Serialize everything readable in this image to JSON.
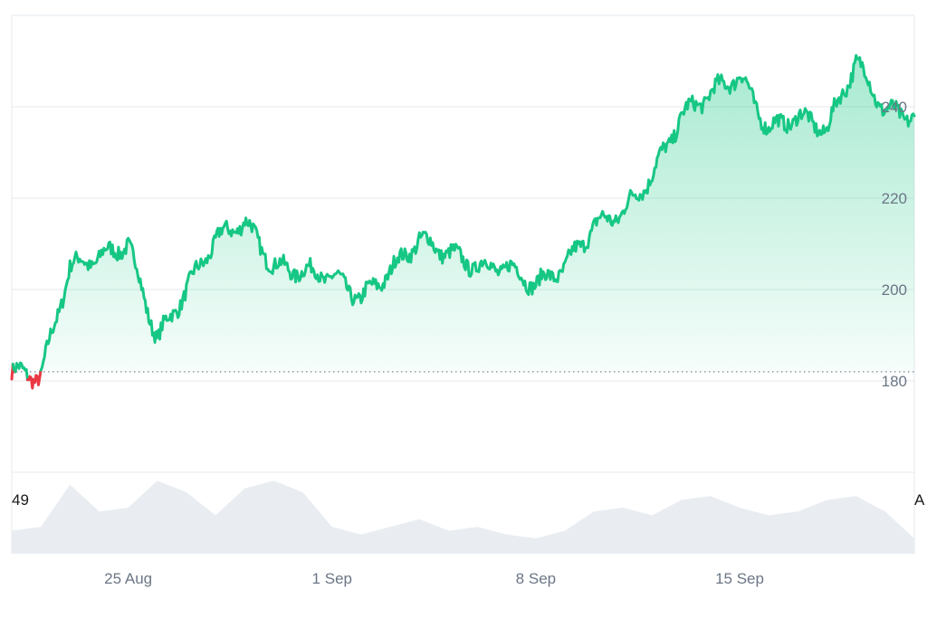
{
  "chart_data": {
    "type": "area",
    "ylim": [
      160,
      260
    ],
    "y_ticks": [
      180,
      200,
      220,
      240
    ],
    "y_tick_labels": [
      "180",
      "200",
      "220",
      "240"
    ],
    "x_tick_labels": [
      "25 Aug",
      "1 Sep",
      "8 Sep",
      "15 Sep"
    ],
    "x_tick_dates": [
      "2025-08-25",
      "2025-09-01",
      "2025-09-08",
      "2025-09-15"
    ],
    "x_range": [
      "2025-08-21",
      "2025-09-21"
    ],
    "baseline": 182,
    "grid": true,
    "series": [
      {
        "color_up": "#16c784",
        "color_down": "#ea3943",
        "x": [
          "2025-08-21",
          "2025-08-22",
          "2025-08-23",
          "2025-08-24",
          "2025-08-25",
          "2025-08-26",
          "2025-08-27",
          "2025-08-28",
          "2025-08-29",
          "2025-08-30",
          "2025-08-31",
          "2025-09-01",
          "2025-09-02",
          "2025-09-03",
          "2025-09-04",
          "2025-09-05",
          "2025-09-06",
          "2025-09-07",
          "2025-09-08",
          "2025-09-09",
          "2025-09-10",
          "2025-09-11",
          "2025-09-12",
          "2025-09-13",
          "2025-09-14",
          "2025-09-15",
          "2025-09-16",
          "2025-09-17",
          "2025-09-18",
          "2025-09-19",
          "2025-09-20",
          "2025-09-21"
        ],
        "values": [
          182,
          181,
          205,
          207,
          210,
          189,
          200,
          211,
          215,
          205,
          204,
          203,
          198,
          204,
          211,
          208,
          205,
          205,
          201,
          205,
          214,
          217,
          225,
          238,
          243,
          247,
          235,
          238,
          235,
          250,
          239,
          238
        ]
      }
    ]
  },
  "volume": {
    "left_label": "49",
    "right_label": "A",
    "x": [
      "2025-08-21",
      "2025-08-22",
      "2025-08-23",
      "2025-08-24",
      "2025-08-25",
      "2025-08-26",
      "2025-08-27",
      "2025-08-28",
      "2025-08-29",
      "2025-08-30",
      "2025-08-31",
      "2025-09-01",
      "2025-09-02",
      "2025-09-03",
      "2025-09-04",
      "2025-09-05",
      "2025-09-06",
      "2025-09-07",
      "2025-09-08",
      "2025-09-09",
      "2025-09-10",
      "2025-09-11",
      "2025-09-12",
      "2025-09-13",
      "2025-09-14",
      "2025-09-15",
      "2025-09-16",
      "2025-09-17",
      "2025-09-18",
      "2025-09-19",
      "2025-09-20",
      "2025-09-21"
    ],
    "values": [
      30,
      35,
      90,
      55,
      60,
      95,
      80,
      50,
      85,
      95,
      80,
      35,
      25,
      35,
      45,
      30,
      35,
      25,
      20,
      30,
      55,
      60,
      50,
      70,
      75,
      60,
      50,
      55,
      70,
      75,
      55,
      20
    ],
    "max": 100,
    "color": "#e9edf2"
  },
  "colors": {
    "grid": "#e6e9ee",
    "baseline": "#7c8594"
  }
}
